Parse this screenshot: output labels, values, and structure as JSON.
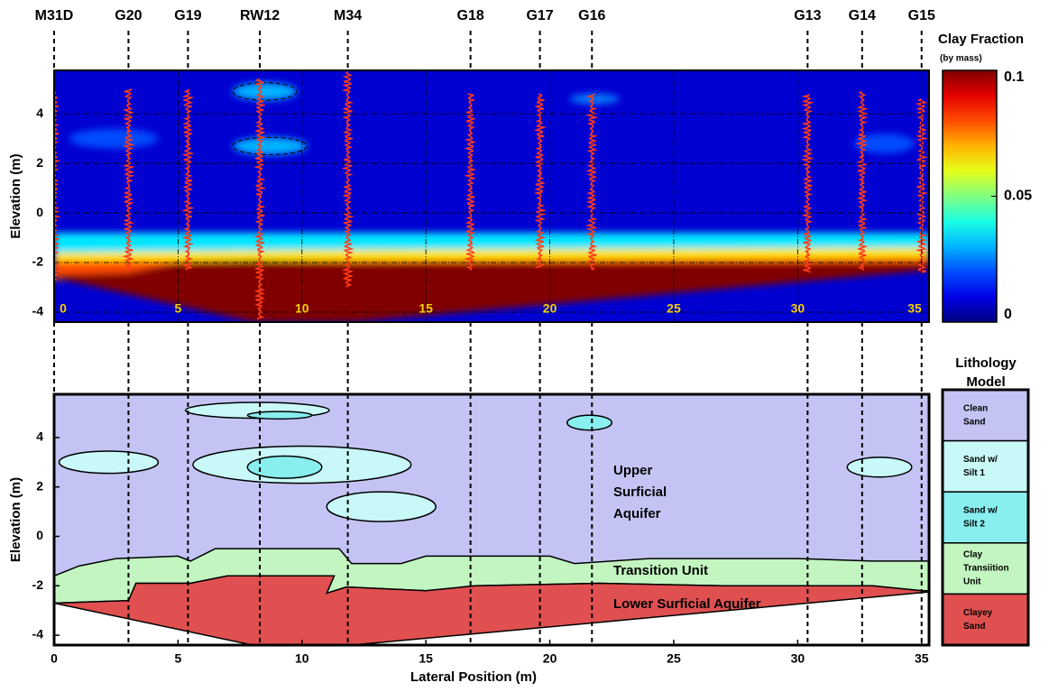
{
  "chart_data": [
    {
      "type": "heatmap",
      "ylabel": "Elevation (m)",
      "xlim": [
        0,
        35.3
      ],
      "ylim": [
        -4.4,
        5.75
      ],
      "xticks": [
        0,
        5,
        10,
        15,
        20,
        25,
        30,
        35
      ],
      "yticks": [
        -4,
        -2,
        0,
        2,
        4
      ],
      "grid": true,
      "colorbar": {
        "label": "Clay Fraction",
        "sublabel": "(by mass)",
        "lim": [
          0,
          0.1
        ],
        "ticks": [
          0,
          0.05,
          0.1
        ],
        "colormap": "jet"
      },
      "background_value": 0.008,
      "layers": [
        {
          "value": 0.035,
          "x": [
            0,
            35.3,
            35.3,
            0
          ],
          "y": [
            -0.8,
            -0.8,
            -2.3,
            -2.7
          ]
        },
        {
          "value": 0.065,
          "x": [
            0,
            10,
            35.3,
            35.3,
            0
          ],
          "y": [
            -1.6,
            -1.5,
            -1.4,
            -2.3,
            -2.7
          ]
        },
        {
          "value": 0.08,
          "x": [
            0,
            35.3,
            35.3,
            0
          ],
          "y": [
            -1.95,
            -1.8,
            -2.3,
            -2.7
          ]
        },
        {
          "value": 0.1,
          "x": [
            0,
            3,
            5,
            8,
            12,
            20,
            35.3,
            35.3,
            12,
            8,
            0
          ],
          "y": [
            -2.5,
            -2.4,
            -2.0,
            -1.9,
            -2.0,
            -2.0,
            -2.0,
            -2.3,
            -4.4,
            -4.4,
            -2.6
          ]
        }
      ],
      "lenses": [
        {
          "value": 0.03,
          "cx": 8.5,
          "cy": 4.9,
          "rx": 1.3,
          "ry": 0.35
        },
        {
          "value": 0.03,
          "cx": 8.7,
          "cy": 2.7,
          "rx": 1.5,
          "ry": 0.35
        },
        {
          "value": 0.02,
          "cx": 2.4,
          "cy": 3.0,
          "rx": 1.8,
          "ry": 0.4
        },
        {
          "value": 0.02,
          "cx": 33.5,
          "cy": 2.8,
          "rx": 1.2,
          "ry": 0.4
        },
        {
          "value": 0.025,
          "cx": 21.8,
          "cy": 4.6,
          "rx": 1.0,
          "ry": 0.2
        }
      ],
      "wells": {
        "names": [
          "M31D",
          "G20",
          "G19",
          "RW12",
          "M34",
          "G18",
          "G17",
          "G16",
          "G13",
          "G14",
          "G15"
        ],
        "x": [
          0,
          3,
          5.4,
          8.3,
          11.85,
          16.8,
          19.6,
          21.7,
          30.4,
          32.6,
          35
        ],
        "log_top": [
          4.9,
          5.0,
          5.0,
          5.4,
          5.7,
          4.8,
          4.8,
          4.8,
          4.8,
          4.9,
          4.6
        ],
        "log_bottom": [
          -2.7,
          -2.3,
          -2.3,
          -4.3,
          -3.0,
          -2.3,
          -2.2,
          -2.3,
          -2.4,
          -2.3,
          -2.4
        ]
      }
    },
    {
      "type": "lithology",
      "ylabel": "Elevation (m)",
      "xlabel": "Lateral Position (m)",
      "xlim": [
        0,
        35.3
      ],
      "ylim": [
        -4.4,
        5.75
      ],
      "xticks": [
        0,
        5,
        10,
        15,
        20,
        25,
        30,
        35
      ],
      "yticks": [
        -4,
        -2,
        0,
        2,
        4
      ],
      "legend": {
        "title": [
          "Lithology",
          "Model"
        ]
      },
      "units": [
        {
          "name": [
            "Clean",
            "Sand"
          ],
          "color": "#c4c4f4",
          "areas": [
            {
              "x": [
                0,
                35.3,
                35.3,
                35,
                12,
                8,
                0
              ],
              "y": [
                5.75,
                5.75,
                -2.3,
                -2.2,
                -4.4,
                -4.4,
                -2.7
              ]
            }
          ]
        },
        {
          "name": [
            "Sand w/",
            "Silt 1"
          ],
          "color": "#c8f8f8",
          "lenses": [
            {
              "cx": 2.2,
              "cy": 3.0,
              "rx": 2.0,
              "ry": 0.45
            },
            {
              "cx": 8.2,
              "cy": 5.1,
              "rx": 2.9,
              "ry": 0.32
            },
            {
              "cx": 10.0,
              "cy": 2.9,
              "rx": 4.4,
              "ry": 0.75
            },
            {
              "cx": 13.2,
              "cy": 1.2,
              "rx": 2.2,
              "ry": 0.6
            },
            {
              "cx": 33.3,
              "cy": 2.8,
              "rx": 1.3,
              "ry": 0.4
            }
          ]
        },
        {
          "name": [
            "Sand w/",
            "Silt 2"
          ],
          "color": "#88eeee",
          "lenses": [
            {
              "cx": 9.1,
              "cy": 4.9,
              "rx": 1.3,
              "ry": 0.15
            },
            {
              "cx": 9.3,
              "cy": 2.8,
              "rx": 1.5,
              "ry": 0.45
            },
            {
              "cx": 21.6,
              "cy": 4.6,
              "rx": 0.9,
              "ry": 0.3
            }
          ]
        },
        {
          "name": [
            "Clay",
            "Transiition",
            "Unit"
          ],
          "color": "#c2f5c0",
          "areas": [
            {
              "x": [
                0,
                1,
                2.5,
                5,
                5.5,
                6.5,
                11.5,
                12,
                14,
                15,
                20,
                21,
                24,
                30,
                33,
                35.3,
                35.3,
                35,
                33,
                27,
                22,
                17,
                15,
                11.8,
                11,
                11.3,
                7,
                5.5,
                3.3,
                3,
                0
              ],
              "y": [
                -1.6,
                -1.2,
                -0.9,
                -0.8,
                -1.0,
                -0.5,
                -0.5,
                -1.1,
                -1.1,
                -0.8,
                -0.8,
                -1.1,
                -0.9,
                -0.9,
                -1.0,
                -1.0,
                -2.2,
                -2.2,
                -2.0,
                -2.0,
                -1.9,
                -2.0,
                -2.2,
                -2.05,
                -2.3,
                -1.6,
                -1.6,
                -1.9,
                -1.9,
                -2.6,
                -2.7
              ]
            }
          ]
        },
        {
          "name": [
            "Clayey",
            "Sand"
          ],
          "color": "#e05050",
          "areas": [
            {
              "x": [
                0,
                3,
                3.3,
                5.5,
                7,
                11.3,
                11,
                11.8,
                15,
                17,
                22,
                27,
                33,
                35,
                35.3,
                12,
                8,
                0
              ],
              "y": [
                -2.7,
                -2.6,
                -1.9,
                -1.9,
                -1.6,
                -1.6,
                -2.3,
                -2.05,
                -2.2,
                -2.0,
                -1.9,
                -2.0,
                -2.0,
                -2.2,
                -2.25,
                -4.4,
                -4.4,
                -2.7
              ]
            }
          ]
        }
      ],
      "annotations": [
        [
          "Upper",
          "Surficial",
          "Aquifer"
        ],
        [
          "Transition Unit"
        ],
        [
          "Lower Surficial Aquifer"
        ]
      ]
    }
  ]
}
